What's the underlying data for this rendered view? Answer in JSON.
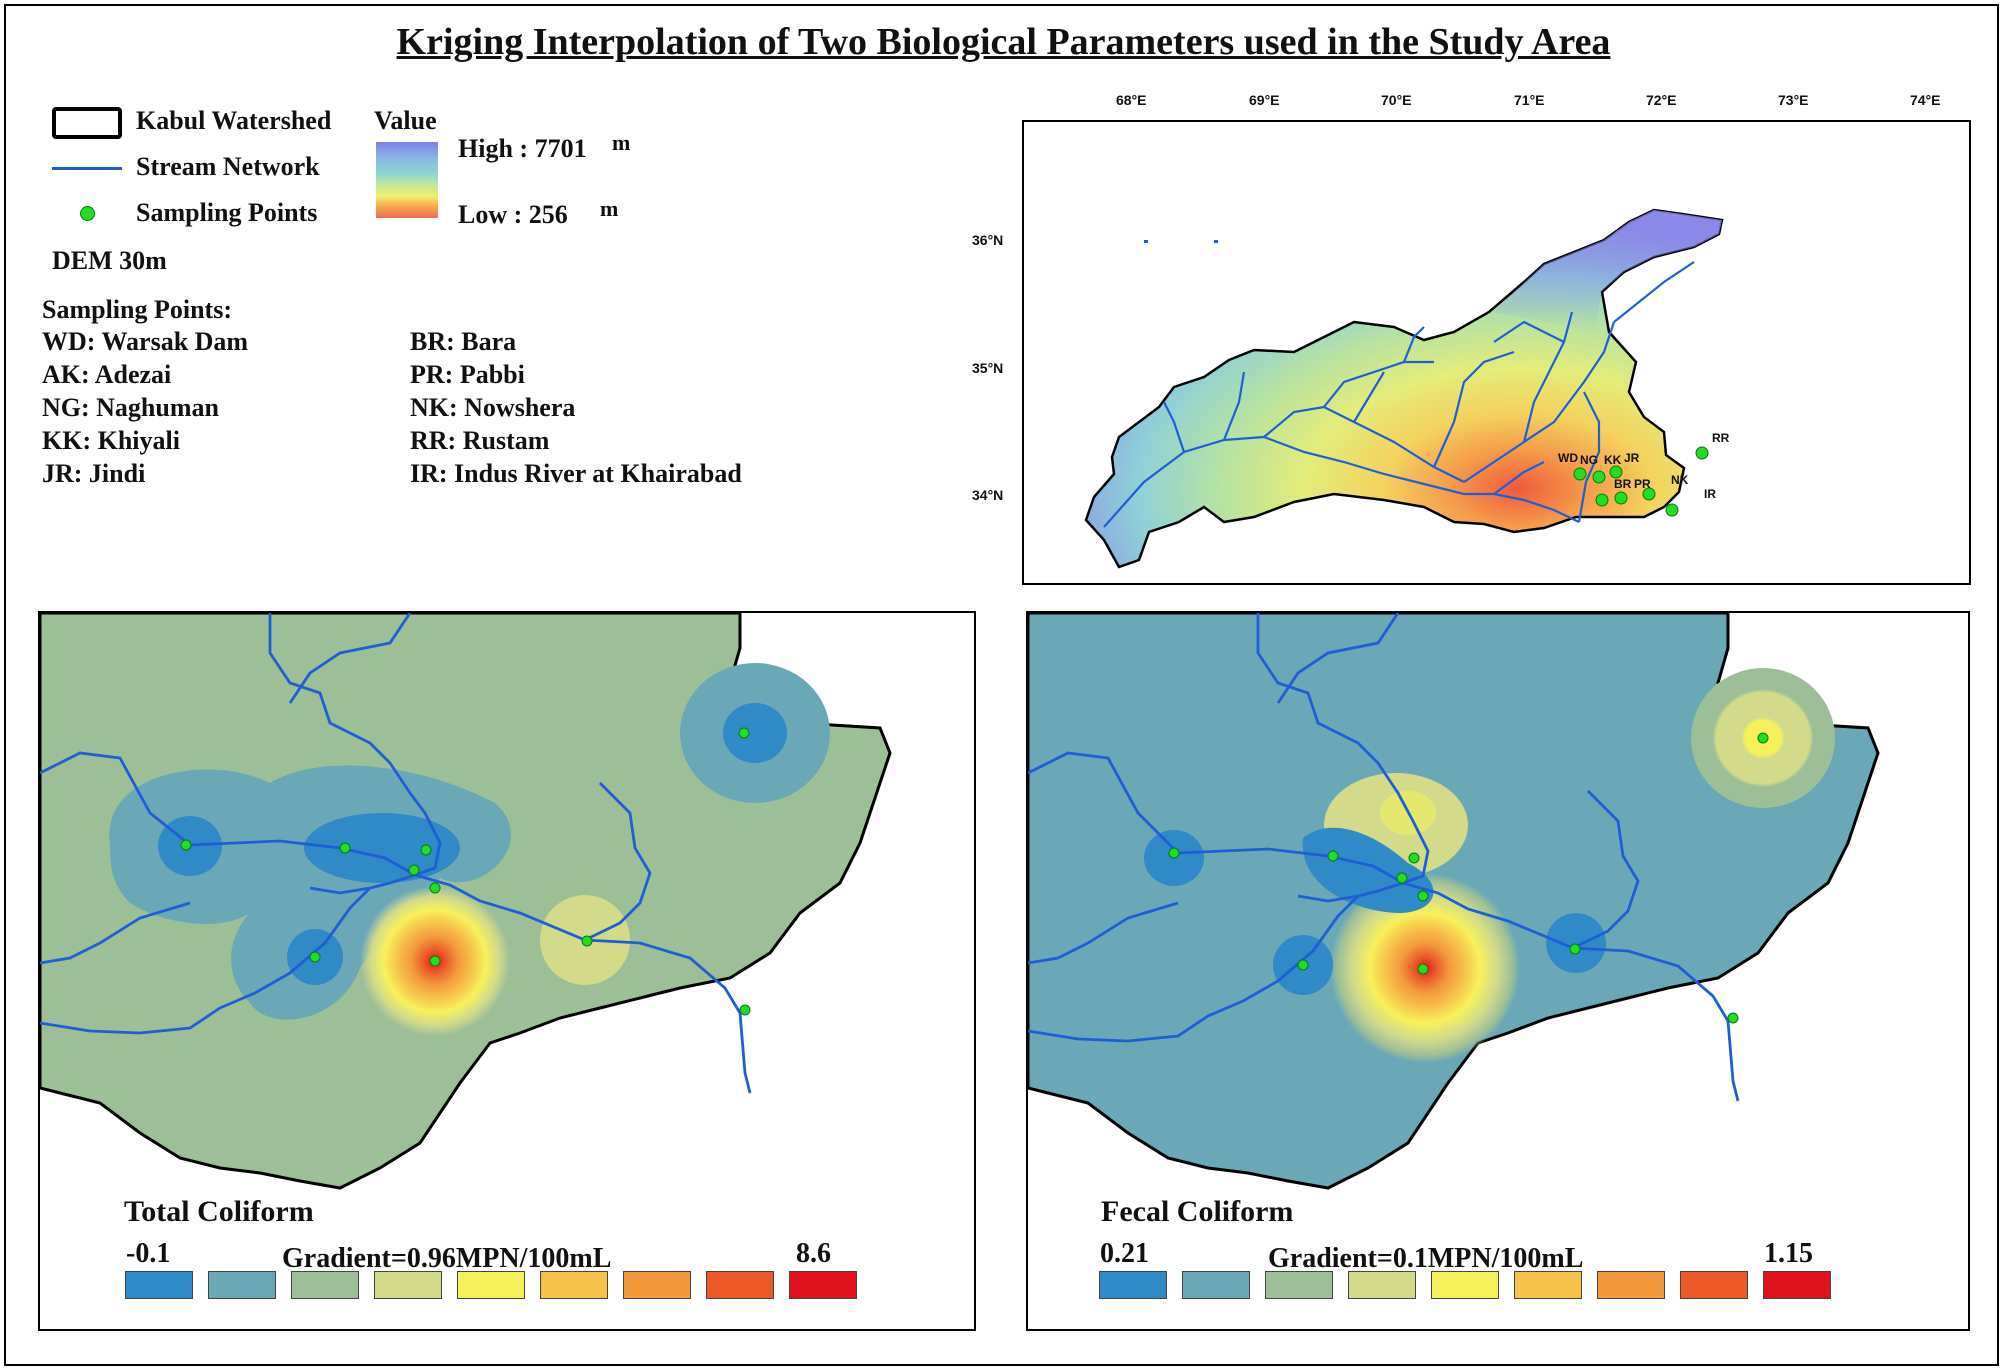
{
  "title": "Kriging Interpolation of Two Biological Parameters used in the Study Area",
  "legend": {
    "watershed": "Kabul Watershed",
    "stream": "Stream Network",
    "sampling": "Sampling Points",
    "value_title": "Value",
    "high": "High : 7701",
    "low": "Low : 256",
    "unit": "m",
    "dem": "DEM 30m"
  },
  "sampling_list": {
    "header": "Sampling Points:",
    "left": [
      "WD: Warsak Dam",
      "AK: Adezai",
      "NG: Naghuman",
      "KK: Khiyali",
      "JR: Jindi"
    ],
    "right": [
      "BR: Bara",
      "PR: Pabbi",
      "NK: Nowshera",
      "RR: Rustam",
      "IR: Indus River at Khairabad"
    ]
  },
  "overview_map": {
    "lon_ticks": [
      "68°E",
      "69°E",
      "70°E",
      "71°E",
      "72°E",
      "73°E",
      "74°E"
    ],
    "lat_ticks": [
      "36°N",
      "35°N",
      "34°N"
    ],
    "point_labels": [
      "WD",
      "NG",
      "KK",
      "JR",
      "BR",
      "PR",
      "NK",
      "RR",
      "IR"
    ]
  },
  "total_coliform": {
    "title": "Total Coliform",
    "min": "-0.1",
    "max": "8.6",
    "gradient": "Gradient=0.96MPN/100mL",
    "colors": [
      "#2f8ac7",
      "#6aa8b8",
      "#9dbf98",
      "#d3db8a",
      "#f6f15a",
      "#f7c24a",
      "#f29a3e",
      "#ec5a2a",
      "#e0131c"
    ]
  },
  "fecal_coliform": {
    "title": "Fecal Coliform",
    "min": "0.21",
    "max": "1.15",
    "gradient": "Gradient=0.1MPN/100mL",
    "colors": [
      "#2f8ac7",
      "#6aa8b8",
      "#9dbf98",
      "#d3db8a",
      "#f6f15a",
      "#f7c24a",
      "#f29a3e",
      "#ec5a2a",
      "#e0131c"
    ]
  }
}
